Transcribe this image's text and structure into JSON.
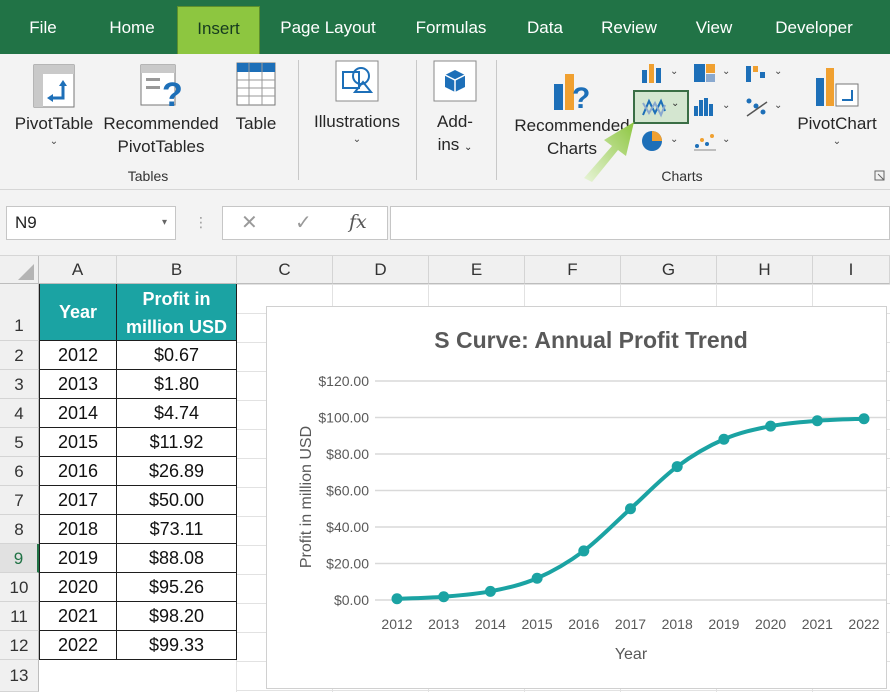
{
  "menu": {
    "tabs": [
      {
        "label": "File"
      },
      {
        "label": "Home"
      },
      {
        "label": "Insert"
      },
      {
        "label": "Page Layout"
      },
      {
        "label": "Formulas"
      },
      {
        "label": "Data"
      },
      {
        "label": "Review"
      },
      {
        "label": "View"
      },
      {
        "label": "Developer"
      }
    ],
    "active": "Insert"
  },
  "ribbon": {
    "tables_group": {
      "label": "Tables",
      "pivottable": "PivotTable",
      "recommended_line1": "Recommended",
      "recommended_line2": "PivotTables",
      "table": "Table"
    },
    "illustrations": "Illustrations",
    "addins_line1": "Add-",
    "addins_line2": "ins",
    "charts_group": {
      "label": "Charts",
      "recommended_line1": "Recommended",
      "recommended_line2": "Charts",
      "pivotchart": "PivotChart"
    }
  },
  "formula_bar": {
    "name_box": "N9",
    "formula": ""
  },
  "sheet": {
    "columns": [
      "A",
      "B",
      "C",
      "D",
      "E",
      "F",
      "G",
      "H",
      "I"
    ],
    "rows": [
      "1",
      "2",
      "3",
      "4",
      "5",
      "6",
      "7",
      "8",
      "9",
      "10",
      "11",
      "12",
      "13"
    ],
    "selected_row": "9",
    "header_year": "Year",
    "header_profit_line1": "Profit in",
    "header_profit_line2": "million USD",
    "data": [
      {
        "year": "2012",
        "profit": "$0.67"
      },
      {
        "year": "2013",
        "profit": "$1.80"
      },
      {
        "year": "2014",
        "profit": "$4.74"
      },
      {
        "year": "2015",
        "profit": "$11.92"
      },
      {
        "year": "2016",
        "profit": "$26.89"
      },
      {
        "year": "2017",
        "profit": "$50.00"
      },
      {
        "year": "2018",
        "profit": "$73.11"
      },
      {
        "year": "2019",
        "profit": "$88.08"
      },
      {
        "year": "2020",
        "profit": "$95.26"
      },
      {
        "year": "2021",
        "profit": "$98.20"
      },
      {
        "year": "2022",
        "profit": "$99.33"
      }
    ]
  },
  "chart_data": {
    "type": "line",
    "title": "S Curve: Annual Profit Trend",
    "xlabel": "Year",
    "ylabel": "Profit in million USD",
    "categories": [
      "2012",
      "2013",
      "2014",
      "2015",
      "2016",
      "2017",
      "2018",
      "2019",
      "2020",
      "2021",
      "2022"
    ],
    "values": [
      0.67,
      1.8,
      4.74,
      11.92,
      26.89,
      50.0,
      73.11,
      88.08,
      95.26,
      98.2,
      99.33
    ],
    "ylim": [
      0,
      120
    ],
    "yticks": [
      0,
      20,
      40,
      60,
      80,
      100,
      120
    ],
    "ytick_labels": [
      "$0.00",
      "$20.00",
      "$40.00",
      "$60.00",
      "$80.00",
      "$100.00",
      "$120.00"
    ],
    "grid": true,
    "legend": "none",
    "color": "#1ba3a3"
  },
  "colors": {
    "excel_green": "#217346",
    "active_tab": "#8dc640",
    "header_fill": "#1ba3a3",
    "series": "#1ba3a3"
  }
}
